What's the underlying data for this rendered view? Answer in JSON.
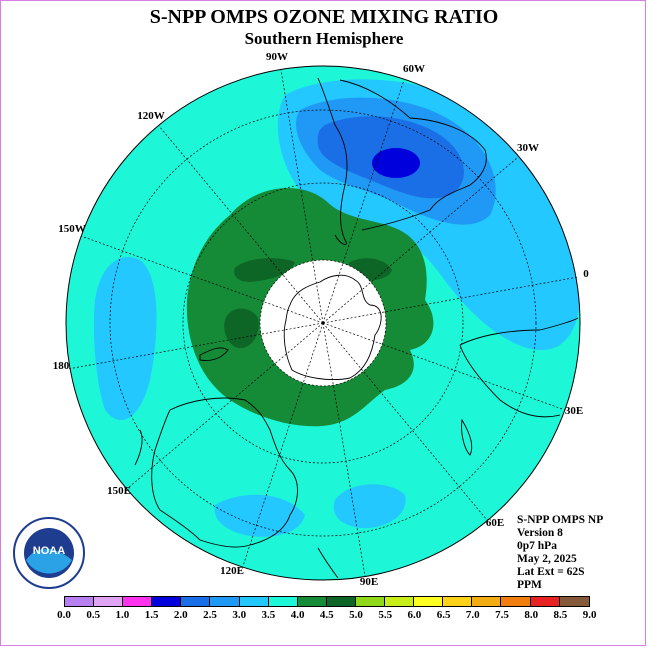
{
  "header": {
    "title": "S-NPP OMPS OZONE MIXING RATIO",
    "subtitle": "Southern Hemisphere"
  },
  "longitude_labels": {
    "w90": "90W",
    "w60": "60W",
    "w30": "30W",
    "e0": "0",
    "e30": "30E",
    "e60": "60E",
    "e90": "90E",
    "e120": "120E",
    "e150": "150E",
    "d180": "180",
    "w150": "150W",
    "w120": "120W"
  },
  "info": {
    "instrument": "S-NPP OMPS NP",
    "version": "Version 8",
    "level": "0p7 hPa",
    "date": "May 2, 2025",
    "lat_ext": "Lat Ext = 62S",
    "units": "PPM"
  },
  "logo": {
    "text": "NOAA",
    "ring_text": "NATIONAL OCEANIC AND ATMOSPHERIC ADMINISTRATION · U.S. DEPARTMENT OF COMMERCE"
  },
  "colorbar": {
    "ticks": [
      "0.0",
      "0.5",
      "1.0",
      "1.5",
      "2.0",
      "2.5",
      "3.0",
      "3.5",
      "4.0",
      "4.5",
      "5.0",
      "5.5",
      "6.0",
      "6.5",
      "7.0",
      "7.5",
      "8.0",
      "8.5",
      "9.0"
    ],
    "colors": [
      "#b77ff0",
      "#e0a4f4",
      "#ff33ee",
      "#0000dd",
      "#1a6fe6",
      "#1f99f5",
      "#22c8ff",
      "#1ef7d7",
      "#158a37",
      "#0d6526",
      "#90d81a",
      "#c8ee1a",
      "#ffff22",
      "#ffd219",
      "#f2ad14",
      "#f07f10",
      "#e82222",
      "#845a3a"
    ]
  },
  "map_colors": {
    "background": "#1ef7d7",
    "cyan": "#22c8ff",
    "blue": "#1f99f5",
    "dark_blue": "#1a6fe6",
    "deep_blue": "#0000dd",
    "green": "#158a37",
    "dark_green": "#0d6526",
    "pole_hole": "#ffffff"
  }
}
